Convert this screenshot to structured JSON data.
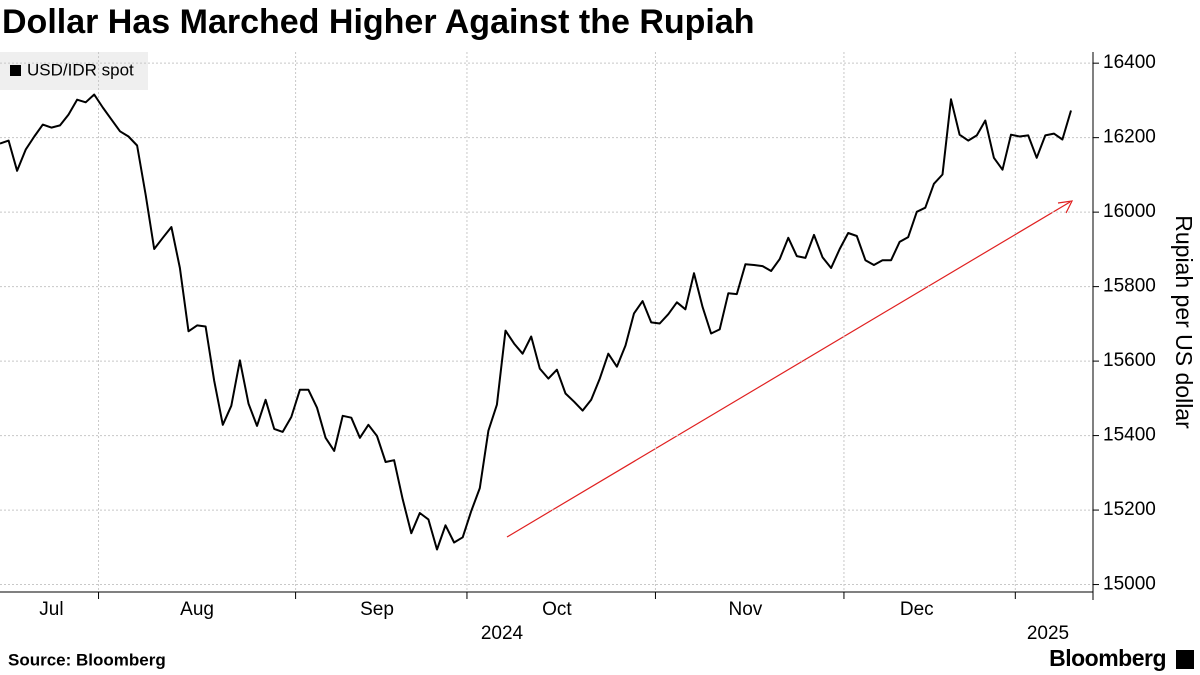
{
  "chart_data": {
    "type": "line",
    "title": "Dollar Has Marched Higher Against the Rupiah",
    "y_axis_label": "Rupiah per US dollar",
    "source": "Source: Bloomberg",
    "brand": "Bloomberg",
    "year_labels": [
      "2024",
      "2025"
    ],
    "categories": [
      null,
      null,
      null,
      null,
      null,
      null,
      "Jul",
      null,
      null,
      null,
      null,
      null,
      null,
      null,
      null,
      null,
      null,
      null,
      null,
      null,
      null,
      null,
      null,
      "Aug",
      null,
      null,
      null,
      null,
      null,
      null,
      null,
      null,
      null,
      null,
      null,
      null,
      null,
      null,
      null,
      null,
      null,
      null,
      null,
      null,
      "Sep",
      null,
      null,
      null,
      null,
      null,
      null,
      null,
      null,
      null,
      null,
      null,
      null,
      null,
      null,
      null,
      null,
      null,
      null,
      null,
      null,
      "Oct",
      null,
      null,
      null,
      null,
      null,
      null,
      null,
      null,
      null,
      null,
      null,
      null,
      null,
      null,
      null,
      null,
      null,
      null,
      null,
      null,
      null,
      "Nov",
      null,
      null,
      null,
      null,
      null,
      null,
      null,
      null,
      null,
      null,
      null,
      null,
      null,
      null,
      null,
      null,
      null,
      null,
      null,
      "Dec",
      null,
      null,
      null,
      null,
      null,
      null,
      null,
      null,
      null,
      null,
      null,
      null,
      null,
      null,
      null,
      null,
      null,
      null
    ],
    "series": [
      {
        "name": "USD/IDR spot",
        "color": "#000000",
        "values": [
          16184,
          16192,
          16111,
          16168,
          16203,
          16235,
          16227,
          16233,
          16262,
          16302,
          16295,
          16316,
          16281,
          16249,
          16217,
          16203,
          16179,
          16046,
          15901,
          15931,
          15960,
          15850,
          15680,
          15696,
          15693,
          15547,
          15429,
          15480,
          15602,
          15486,
          15426,
          15496,
          15418,
          15410,
          15450,
          15523,
          15523,
          15475,
          15394,
          15359,
          15453,
          15448,
          15394,
          15429,
          15399,
          15329,
          15334,
          15229,
          15138,
          15192,
          15175,
          15094,
          15159,
          15113,
          15127,
          15197,
          15259,
          15413,
          15483,
          15682,
          15647,
          15620,
          15666,
          15580,
          15553,
          15577,
          15513,
          15491,
          15467,
          15496,
          15553,
          15620,
          15585,
          15642,
          15728,
          15761,
          15704,
          15701,
          15726,
          15758,
          15739,
          15836,
          15745,
          15674,
          15685,
          15782,
          15780,
          15860,
          15858,
          15855,
          15842,
          15874,
          15931,
          15882,
          15877,
          15939,
          15879,
          15850,
          15901,
          15944,
          15936,
          15871,
          15858,
          15871,
          15871,
          15920,
          15933,
          16001,
          16012,
          16076,
          16101,
          16303,
          16208,
          16192,
          16206,
          16246,
          16146,
          16114,
          16208,
          16203,
          16206,
          16146,
          16206,
          16211,
          16195,
          16273
        ]
      }
    ],
    "ylim": [
      14980,
      16430
    ],
    "yticks": [
      15000,
      15200,
      15400,
      15600,
      15800,
      16000,
      16200,
      16400
    ],
    "grid": true
  }
}
